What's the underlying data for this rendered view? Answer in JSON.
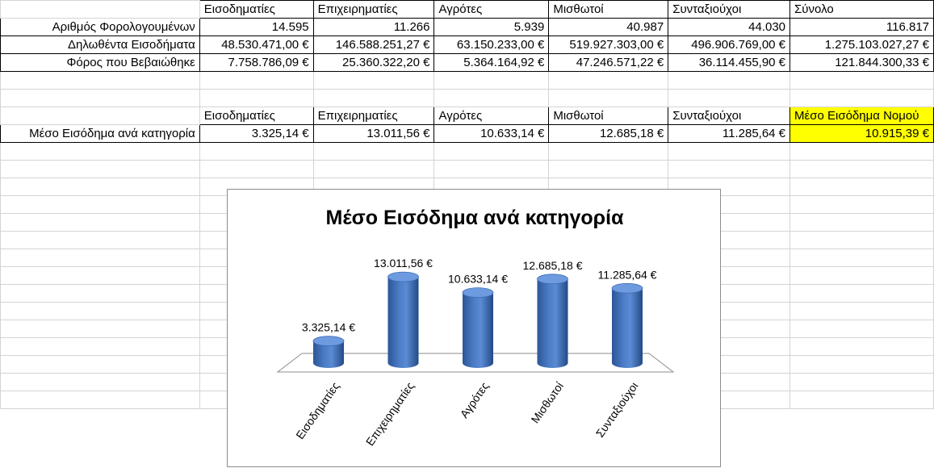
{
  "table1": {
    "headers": [
      "Εισοδηματίες",
      "Επιχειρηματίες",
      "Αγρότες",
      "Μισθωτοί",
      "Συνταξιούχοι",
      "Σύνολο"
    ],
    "rows": [
      {
        "label": "Αριθμός Φορολογουμένων",
        "values": [
          "14.595",
          "11.266",
          "5.939",
          "40.987",
          "44.030",
          "116.817"
        ]
      },
      {
        "label": "Δηλωθέντα Εισοδήματα",
        "values": [
          "48.530.471,00 €",
          "146.588.251,27 €",
          "63.150.233,00 €",
          "519.927.303,00 €",
          "496.906.769,00 €",
          "1.275.103.027,27 €"
        ]
      },
      {
        "label": "Φόρος που Βεβαιώθηκε",
        "values": [
          "7.758.786,09 €",
          "25.360.322,20 €",
          "5.364.164,92 €",
          "47.246.571,22 €",
          "36.114.455,90 €",
          "121.844.300,33 €"
        ]
      }
    ]
  },
  "table2": {
    "headers": [
      "Εισοδηματίες",
      "Επιχειρηματίες",
      "Αγρότες",
      "Μισθωτοί",
      "Συνταξιούχοι",
      "Μέσο Εισόδημα Νομού"
    ],
    "row": {
      "label": "Μέσο Εισόδημα ανά κατηγορία",
      "values": [
        "3.325,14 €",
        "13.011,56 €",
        "10.633,14 €",
        "12.685,18 €",
        "11.285,64 €",
        "10.915,39 €"
      ]
    },
    "highlight_color": "#ffff00"
  },
  "chart_data": {
    "type": "bar",
    "title": "Μέσο Εισόδημα ανά κατηγορία",
    "categories": [
      "Εισοδηματίες",
      "Επιχειρηματίες",
      "Αγρότες",
      "Μισθωτοί",
      "Συνταξιούχοι"
    ],
    "values": [
      3325.14,
      13011.56,
      10633.14,
      12685.18,
      11285.64
    ],
    "data_labels": [
      "3.325,14 €",
      "13.011,56 €",
      "10.633,14 €",
      "12.685,18 €",
      "11.285,64 €"
    ],
    "ylim": [
      0,
      14000
    ],
    "bar_color": "#4a7bc4",
    "style": "3d-cylinder",
    "legend": "none",
    "grid": false
  }
}
